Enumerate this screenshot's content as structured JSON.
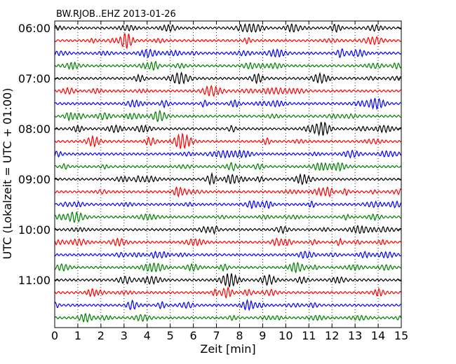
{
  "chart_data": {
    "type": "line",
    "title": "BW.RJOB..EHZ 2013-01-26",
    "xlabel": "Zeit  [min]",
    "ylabel": "UTC (Lokalzeit = UTC + 01:00)",
    "xlim": [
      0,
      15
    ],
    "x_ticks": [
      "0",
      "1",
      "2",
      "3",
      "4",
      "5",
      "6",
      "7",
      "8",
      "9",
      "10",
      "11",
      "12",
      "13",
      "14",
      "15"
    ],
    "y_ticks": [
      "06:00",
      "07:00",
      "08:00",
      "09:00",
      "10:00",
      "11:00"
    ],
    "grid": "x-dotted",
    "interval_minutes": 15,
    "trace_colors": [
      "#000000",
      "#ff0000",
      "#0000ff",
      "#008000"
    ],
    "traces": [
      {
        "start": "06:00"
      },
      {
        "start": "06:15"
      },
      {
        "start": "06:30"
      },
      {
        "start": "06:45"
      },
      {
        "start": "07:00"
      },
      {
        "start": "07:15"
      },
      {
        "start": "07:30"
      },
      {
        "start": "07:45"
      },
      {
        "start": "08:00"
      },
      {
        "start": "08:15"
      },
      {
        "start": "08:30"
      },
      {
        "start": "08:45"
      },
      {
        "start": "09:00"
      },
      {
        "start": "09:15"
      },
      {
        "start": "09:30"
      },
      {
        "start": "09:45"
      },
      {
        "start": "10:00"
      },
      {
        "start": "10:15"
      },
      {
        "start": "10:30"
      },
      {
        "start": "10:45"
      },
      {
        "start": "11:00"
      },
      {
        "start": "11:15"
      },
      {
        "start": "11:30"
      },
      {
        "start": "11:45"
      }
    ]
  }
}
